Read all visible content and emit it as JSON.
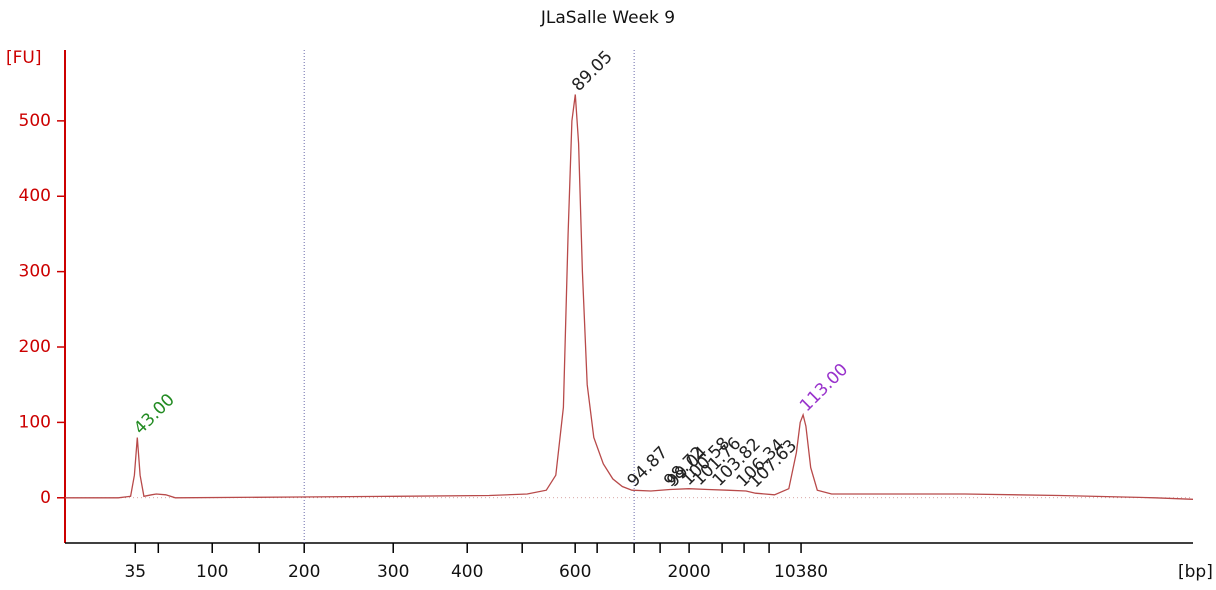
{
  "chart_data": {
    "type": "line",
    "title": "JLaSalle Week 9",
    "ylabel": "[FU]",
    "xlabel": "[bp]",
    "axis_color": "#cc0000",
    "ylim": [
      -60,
      594
    ],
    "yticks": [
      0,
      100,
      200,
      300,
      400,
      500
    ],
    "xlim": [
      35.4,
      154
    ],
    "xticks": [
      {
        "value": 42.79,
        "label": "35"
      },
      {
        "value": 50.88,
        "label": "100"
      },
      {
        "value": 60.55,
        "label": "200"
      },
      {
        "value": 69.91,
        "label": "300"
      },
      {
        "value": 77.69,
        "label": "400"
      },
      {
        "value": 89.04,
        "label": "600"
      },
      {
        "value": 101.02,
        "label": "2000"
      },
      {
        "value": 112.79,
        "label": "10380"
      }
    ],
    "xminor_ticks": [
      45.21,
      55.82,
      83.47,
      91.35,
      95.24,
      97.97,
      104.49,
      106.8,
      109.43
    ],
    "region_lines": [
      60.55,
      95.24
    ],
    "series": [
      {
        "color": "#b84a4a",
        "x": [
          35.4,
          41,
          42.3,
          42.7,
          43,
          43.3,
          43.7,
          44.5,
          45,
          46,
          47,
          60,
          70,
          80,
          84,
          86,
          87,
          87.8,
          88.3,
          88.7,
          89.05,
          89.4,
          89.8,
          90.3,
          91,
          92,
          93,
          94,
          95,
          97,
          99,
          101,
          103,
          105,
          107,
          108,
          110,
          111.5,
          112.3,
          112.7,
          113,
          113.3,
          113.8,
          114.5,
          116,
          120,
          130,
          140,
          150,
          154
        ],
        "values": [
          0,
          0,
          2,
          30,
          80,
          30,
          2,
          4,
          5,
          4,
          0,
          1,
          2,
          3,
          5,
          10,
          30,
          120,
          350,
          500,
          535,
          470,
          300,
          150,
          80,
          45,
          25,
          15,
          10,
          9,
          11,
          12,
          11,
          10,
          9,
          6,
          4,
          12,
          60,
          100,
          110,
          95,
          40,
          10,
          5,
          5,
          5,
          3,
          0,
          -2
        ]
      }
    ],
    "annotations": [
      {
        "x": 43,
        "y": 80,
        "label": "43.00",
        "color": "#228b22"
      },
      {
        "x": 89.05,
        "y": 535,
        "label": "89.05",
        "color": "#222222"
      },
      {
        "x": 94.87,
        "y": 10,
        "label": "94.87",
        "color": "#222222"
      },
      {
        "x": 98.72,
        "y": 10,
        "label": "98.72",
        "color": "#222222"
      },
      {
        "x": 99.04,
        "y": 10,
        "label": "99.04",
        "color": "#222222"
      },
      {
        "x": 100.58,
        "y": 12,
        "label": "100.58",
        "color": "#222222"
      },
      {
        "x": 101.76,
        "y": 12,
        "label": "101.76",
        "color": "#222222"
      },
      {
        "x": 103.82,
        "y": 11,
        "label": "103.82",
        "color": "#222222"
      },
      {
        "x": 106.34,
        "y": 10,
        "label": "106.34",
        "color": "#222222"
      },
      {
        "x": 107.63,
        "y": 9,
        "label": "107.63",
        "color": "#222222"
      },
      {
        "x": 113,
        "y": 110,
        "label": "113.00",
        "color": "#9932cc"
      }
    ]
  }
}
